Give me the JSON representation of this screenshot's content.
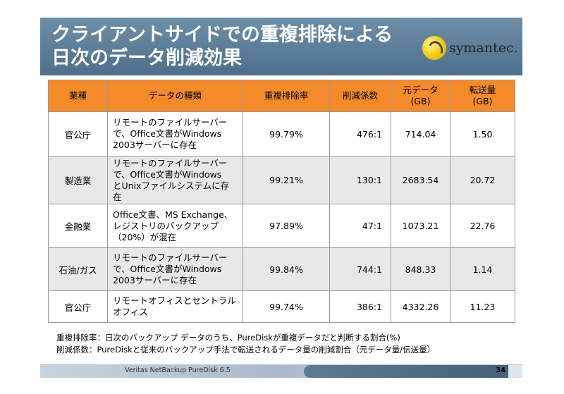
{
  "slide": {
    "title_line1": "クライアントサイドでの重複排除による",
    "title_line2": "日次のデータ削減効果",
    "logo_text": "symantec.",
    "header_color": "#5b7c97",
    "table_header_color": "#f48a2a"
  },
  "table": {
    "headers": {
      "industry": "業種",
      "data_type": "データの種類",
      "dedup_rate": "重複排除率",
      "reduction_ratio": "削減係数",
      "original_line1": "元データ",
      "original_line2": "(GB)",
      "transfer_line1": "転送量",
      "transfer_line2": "(GB)"
    },
    "rows": [
      {
        "industry": "官公庁",
        "data_type": [
          "リモートのファイルサーバー",
          "で、Office文書がWindows",
          "2003サーバーに存在"
        ],
        "dedup_rate": "99.79%",
        "reduction_ratio": "476:1",
        "original": "714.04",
        "transfer": "1.50"
      },
      {
        "industry": "製造業",
        "data_type": [
          "リモートのファイルサーバー",
          "で、Office文書がWindows",
          "とUnixファイルシステムに存",
          "在"
        ],
        "dedup_rate": "99.21%",
        "reduction_ratio": "130:1",
        "original": "2683.54",
        "transfer": "20.72"
      },
      {
        "industry": "金融業",
        "data_type": [
          "Office文書、MS Exchange、",
          "レジストリのバックアップ",
          "（20%）が混在"
        ],
        "dedup_rate": "97.89%",
        "reduction_ratio": "47:1",
        "original": "1073.21",
        "transfer": "22.76"
      },
      {
        "industry": "石油/ガス",
        "data_type": [
          "リモートのファイルサーバー",
          "で、Office文書がWindows",
          "2003サーバーに存在"
        ],
        "dedup_rate": "99.84%",
        "reduction_ratio": "744:1",
        "original": "848.33",
        "transfer": "1.14"
      },
      {
        "industry": "官公庁",
        "data_type": [
          "リモートオフィスとセントラル",
          "オフィス"
        ],
        "dedup_rate": "99.74%",
        "reduction_ratio": "386:1",
        "original": "4332.26",
        "transfer": "11.23"
      }
    ]
  },
  "notes": {
    "line1": "重複排除率：日次のバックアップ データのうち、PureDiskが重複データだと判断する割合(%)",
    "line2": "削減係数：PureDiskと従来のバックアップ手法で転送されるデータ量の削減割合（元データ量/伝送量）"
  },
  "footer": {
    "product": "Veritas NetBackup PureDisk 6.5",
    "page_number": "34"
  }
}
